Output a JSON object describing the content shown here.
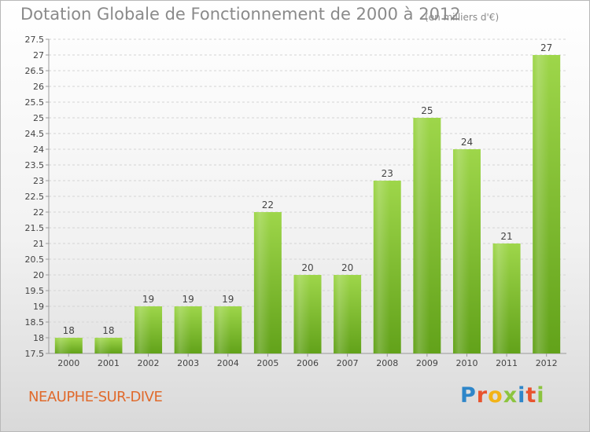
{
  "header": {
    "title": "Dotation Globale de Fonctionnement de 2000 à 2012",
    "subtitle": "(en milliers d'€)"
  },
  "footer": {
    "commune": "NEAUPHE-SUR-DIVE",
    "logo": {
      "text": "Proxiti",
      "letters": [
        {
          "char": "P",
          "color": "#2e86c9"
        },
        {
          "char": "r",
          "color": "#e8532e"
        },
        {
          "char": "o",
          "color": "#f2b317"
        },
        {
          "char": "x",
          "color": "#8cc43f"
        },
        {
          "char": "i",
          "color": "#2e86c9"
        },
        {
          "char": "t",
          "color": "#e8532e"
        },
        {
          "char": "i",
          "color": "#8cc43f"
        }
      ]
    }
  },
  "colors": {
    "bar_top": "#9ed64a",
    "bar_bottom": "#62a21a",
    "axis": "#9a9a9a",
    "grid": "#d4d4d4",
    "text": "#444444"
  },
  "chart_data": {
    "type": "bar",
    "title": "Dotation Globale de Fonctionnement de 2000 à 2012",
    "subtitle": "(en milliers d'€)",
    "categories": [
      "2000",
      "2001",
      "2002",
      "2003",
      "2004",
      "2005",
      "2006",
      "2007",
      "2008",
      "2009",
      "2010",
      "2011",
      "2012"
    ],
    "values": [
      18,
      18,
      19,
      19,
      19,
      22,
      20,
      20,
      23,
      25,
      24,
      21,
      27
    ],
    "data_labels": [
      "18",
      "18",
      "19",
      "19",
      "19",
      "22",
      "20",
      "20",
      "23",
      "25",
      "24",
      "21",
      "27"
    ],
    "ylim": [
      17.5,
      27.5
    ],
    "yticks": [
      17.5,
      18,
      18.5,
      19,
      19.5,
      20,
      20.5,
      21,
      21.5,
      22,
      22.5,
      23,
      23.5,
      24,
      24.5,
      25,
      25.5,
      26,
      26.5,
      27,
      27.5
    ],
    "ytick_labels": [
      "17.5",
      "18",
      "18.5",
      "19",
      "19.5",
      "20",
      "20.5",
      "21",
      "21.5",
      "22",
      "22.5",
      "23",
      "23.5",
      "24",
      "24.5",
      "25",
      "25.5",
      "26",
      "26.5",
      "27",
      "27.5"
    ],
    "xlabel": "",
    "ylabel": "",
    "grid": true,
    "legend": false
  }
}
